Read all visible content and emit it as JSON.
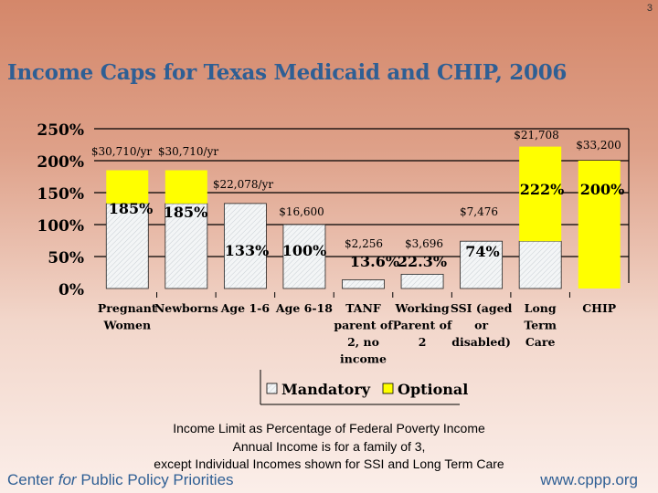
{
  "page_number": "3",
  "title": "Income Caps for Texas Medicaid and CHIP, 2006",
  "chart_data": {
    "type": "bar",
    "stacked": true,
    "categories": [
      [
        "Pregnant",
        "Women"
      ],
      [
        "Newborns"
      ],
      [
        "Age 1-6"
      ],
      [
        "Age 6-18"
      ],
      [
        "TANF",
        "parent of",
        "2, no",
        "income"
      ],
      [
        "Working",
        "Parent of",
        "2"
      ],
      [
        "SSI (aged",
        "or",
        "disabled)"
      ],
      [
        "Long",
        "Term",
        "Care"
      ],
      [
        "CHIP"
      ]
    ],
    "series": [
      {
        "name": "Mandatory",
        "color": "#eef2f4",
        "values": [
          133,
          133,
          133,
          100,
          13.6,
          22.3,
          74,
          74,
          0
        ]
      },
      {
        "name": "Optional",
        "color": "#ffff00",
        "values": [
          52,
          52,
          0,
          0,
          0,
          0,
          0,
          148,
          200
        ]
      }
    ],
    "percent_labels": [
      "185%",
      "185%",
      "133%",
      "100%",
      "13.6%",
      "22.3%",
      "74%",
      "222%",
      "200%"
    ],
    "income_labels": [
      "$30,710/yr",
      "$30,710/yr",
      "$22,078/yr",
      "$16,600",
      "$2,256",
      "$3,696",
      "$7,476",
      "$21,708",
      "$33,200"
    ],
    "y_ticks": [
      "0%",
      "50%",
      "100%",
      "150%",
      "200%",
      "250%"
    ],
    "ylim": [
      0,
      250
    ],
    "grid": true,
    "legend": "bottom"
  },
  "notes": [
    "Income Limit  as Percentage of Federal Poverty Income",
    "Annual Income is for a family of 3,",
    "except Individual Incomes shown for SSI and Long Term Care"
  ],
  "footer": {
    "org_prefix": "Center ",
    "org_italic": "for",
    "org_suffix": " Public Policy Priorities",
    "url": "www.cppp.org"
  }
}
